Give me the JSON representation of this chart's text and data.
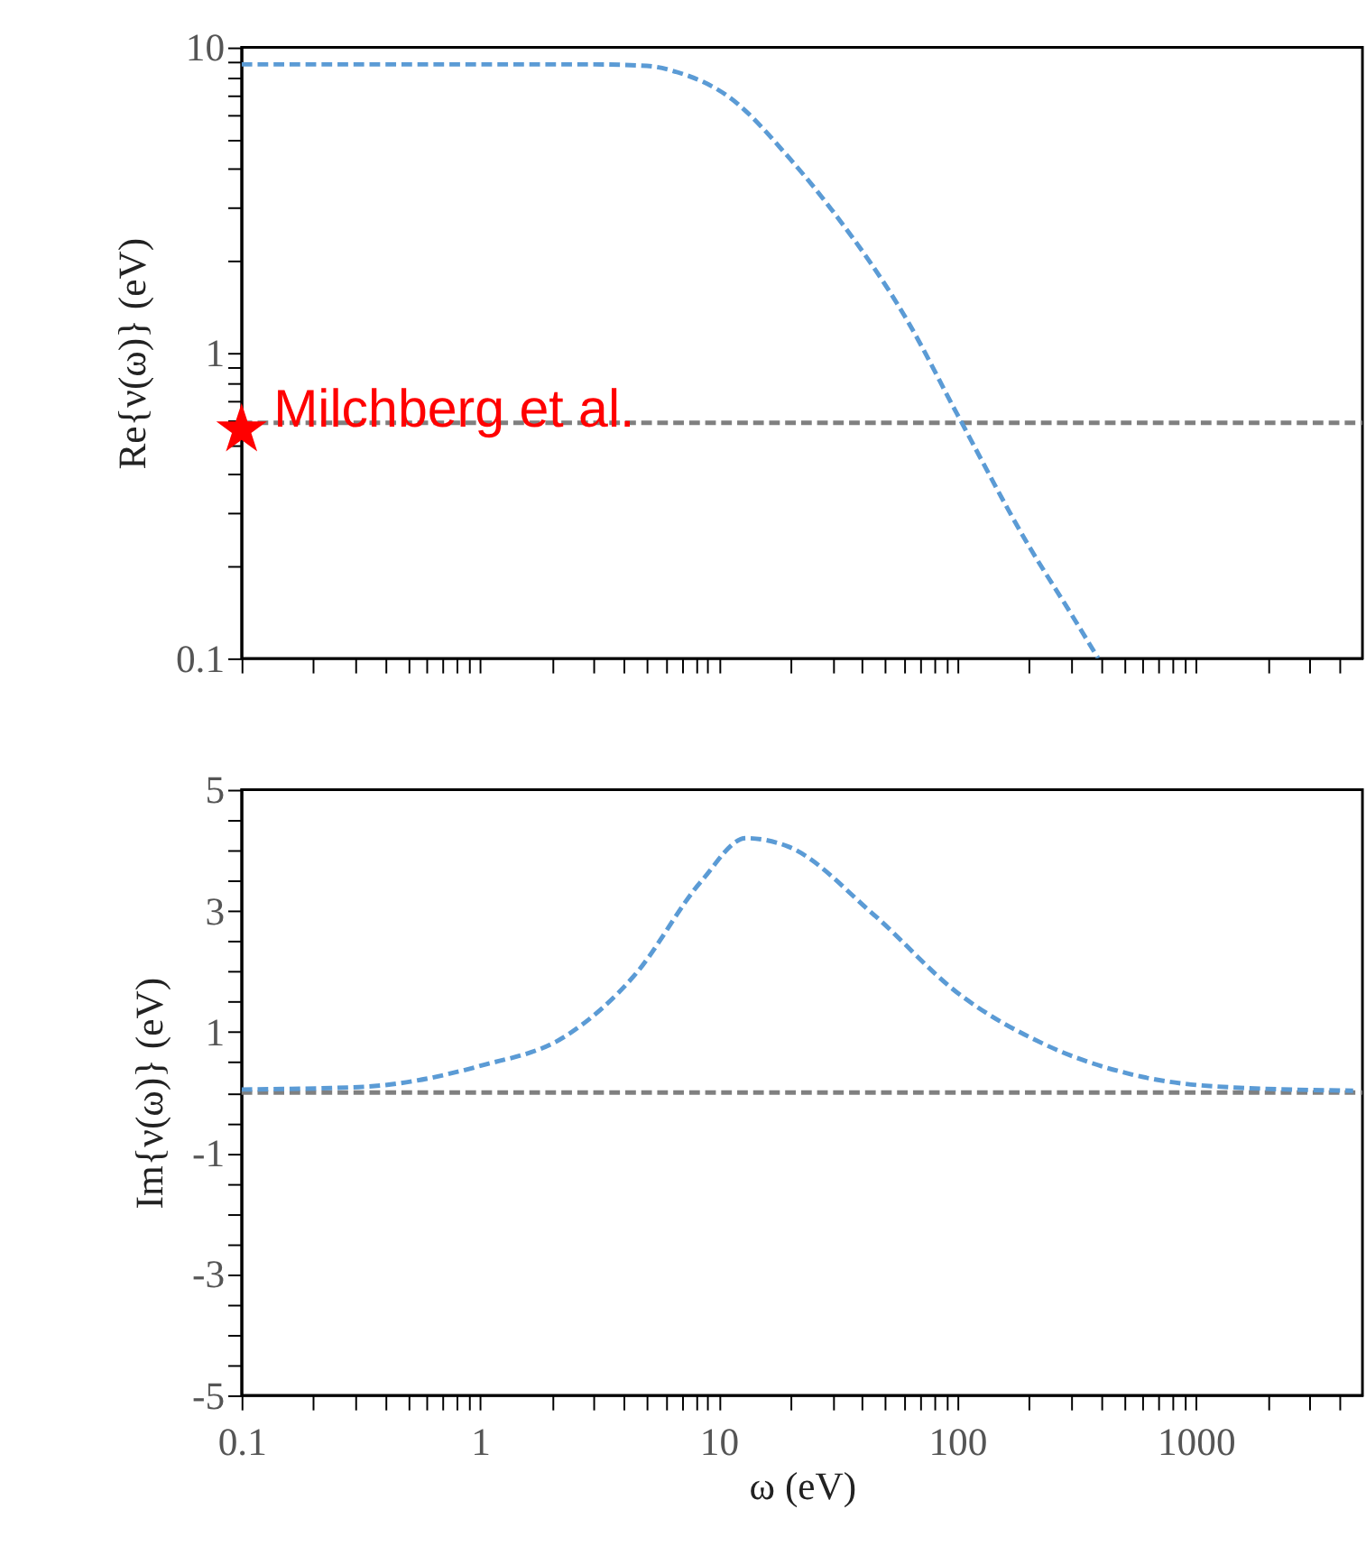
{
  "chart_data": [
    {
      "type": "line",
      "ylabel": "Re{ν(ω)} (eV)",
      "log": "xy",
      "tick_labels": "y",
      "grid": false,
      "line_style": "dashed",
      "xlim": [
        0.1,
        5000
      ],
      "ylim": [
        0.1,
        10
      ],
      "xticks": [
        0.1,
        {
          "value": 0.2,
          "label": null
        },
        {
          "value": 0.3,
          "label": null
        },
        {
          "value": 0.4,
          "label": null
        },
        {
          "value": 0.5,
          "label": null
        },
        {
          "value": 0.6,
          "label": null
        },
        {
          "value": 0.7,
          "label": null
        },
        {
          "value": 0.8,
          "label": null
        },
        {
          "value": 0.9,
          "label": null
        },
        1,
        {
          "value": 2,
          "label": null
        },
        {
          "value": 3,
          "label": null
        },
        {
          "value": 4,
          "label": null
        },
        {
          "value": 5,
          "label": null
        },
        {
          "value": 6,
          "label": null
        },
        {
          "value": 7,
          "label": null
        },
        {
          "value": 8,
          "label": null
        },
        {
          "value": 9,
          "label": null
        },
        10,
        {
          "value": 20,
          "label": null
        },
        {
          "value": 30,
          "label": null
        },
        {
          "value": 40,
          "label": null
        },
        {
          "value": 50,
          "label": null
        },
        {
          "value": 60,
          "label": null
        },
        {
          "value": 70,
          "label": null
        },
        {
          "value": 80,
          "label": null
        },
        {
          "value": 90,
          "label": null
        },
        100,
        {
          "value": 200,
          "label": null
        },
        {
          "value": 300,
          "label": null
        },
        {
          "value": 400,
          "label": null
        },
        {
          "value": 500,
          "label": null
        },
        {
          "value": 600,
          "label": null
        },
        {
          "value": 700,
          "label": null
        },
        {
          "value": 800,
          "label": null
        },
        {
          "value": 900,
          "label": null
        },
        1000,
        {
          "value": 2000,
          "label": null
        },
        {
          "value": 3000,
          "label": null
        },
        {
          "value": 4000,
          "label": null
        }
      ],
      "yticks": [
        0.1,
        {
          "value": 0.2,
          "label": null
        },
        {
          "value": 0.3,
          "label": null
        },
        {
          "value": 0.4,
          "label": null
        },
        {
          "value": 0.5,
          "label": null
        },
        {
          "value": 0.6,
          "label": null
        },
        {
          "value": 0.7,
          "label": null
        },
        {
          "value": 0.8,
          "label": null
        },
        {
          "value": 0.9,
          "label": null
        },
        1,
        {
          "value": 2,
          "label": null
        },
        {
          "value": 3,
          "label": null
        },
        {
          "value": 4,
          "label": null
        },
        {
          "value": 5,
          "label": null
        },
        {
          "value": 6,
          "label": null
        },
        {
          "value": 7,
          "label": null
        },
        {
          "value": 8,
          "label": null
        },
        {
          "value": 9,
          "label": null
        },
        10
      ],
      "series": [
        {
          "color": "#5b9bd5",
          "x": [
            0.1,
            1,
            3,
            5,
            6.7,
            11,
            20,
            29.6,
            62,
            100,
            198,
            300,
            390
          ],
          "values": [
            8.8,
            8.8,
            8.8,
            8.7,
            8.3,
            6.9,
            4.3,
            2.96,
            1.27,
            0.63,
            0.236,
            0.14,
            0.1
          ]
        },
        {
          "type": "scatter",
          "name": "Milchberg et al.",
          "color": "#ff0000",
          "marker": "star",
          "x": [
            0.1
          ],
          "values": [
            0.56
          ]
        }
      ],
      "ref_lines": [
        {
          "axis": "y",
          "value": 0.59,
          "color": "#808080",
          "line_style": "dashed"
        }
      ]
    },
    {
      "type": "line",
      "xlabel": "ω (eV)",
      "ylabel": "Im{ν(ω)} (eV)",
      "log": "x",
      "grid": false,
      "line_style": "dashed",
      "xlim": [
        0.1,
        5000
      ],
      "ylim": [
        -5,
        5
      ],
      "xticks": [
        0.1,
        {
          "value": 0.2,
          "label": null
        },
        {
          "value": 0.3,
          "label": null
        },
        {
          "value": 0.4,
          "label": null
        },
        {
          "value": 0.5,
          "label": null
        },
        {
          "value": 0.6,
          "label": null
        },
        {
          "value": 0.7,
          "label": null
        },
        {
          "value": 0.8,
          "label": null
        },
        {
          "value": 0.9,
          "label": null
        },
        1,
        {
          "value": 2,
          "label": null
        },
        {
          "value": 3,
          "label": null
        },
        {
          "value": 4,
          "label": null
        },
        {
          "value": 5,
          "label": null
        },
        {
          "value": 6,
          "label": null
        },
        {
          "value": 7,
          "label": null
        },
        {
          "value": 8,
          "label": null
        },
        {
          "value": 9,
          "label": null
        },
        10,
        {
          "value": 20,
          "label": null
        },
        {
          "value": 30,
          "label": null
        },
        {
          "value": 40,
          "label": null
        },
        {
          "value": 50,
          "label": null
        },
        {
          "value": 60,
          "label": null
        },
        {
          "value": 70,
          "label": null
        },
        {
          "value": 80,
          "label": null
        },
        {
          "value": 90,
          "label": null
        },
        100,
        {
          "value": 200,
          "label": null
        },
        {
          "value": 300,
          "label": null
        },
        {
          "value": 400,
          "label": null
        },
        {
          "value": 500,
          "label": null
        },
        {
          "value": 600,
          "label": null
        },
        {
          "value": 700,
          "label": null
        },
        {
          "value": 800,
          "label": null
        },
        {
          "value": 900,
          "label": null
        },
        1000,
        {
          "value": 2000,
          "label": null
        },
        {
          "value": 3000,
          "label": null
        },
        {
          "value": 4000,
          "label": null
        }
      ],
      "yticks": [
        -5,
        {
          "value": -4.5,
          "label": null
        },
        {
          "value": -4,
          "label": null
        },
        {
          "value": -3.5,
          "label": null
        },
        -3,
        {
          "value": -2.5,
          "label": null
        },
        {
          "value": -2,
          "label": null
        },
        {
          "value": -1.5,
          "label": null
        },
        -1,
        {
          "value": -0.5,
          "label": null
        },
        {
          "value": 0,
          "label": null
        },
        {
          "value": 0.5,
          "label": null
        },
        1,
        {
          "value": 1.5,
          "label": null
        },
        {
          "value": 2,
          "label": null
        },
        {
          "value": 2.5,
          "label": null
        },
        3,
        {
          "value": 3.5,
          "label": null
        },
        {
          "value": 4,
          "label": null
        },
        {
          "value": 4.5,
          "label": null
        },
        5
      ],
      "series": [
        {
          "color": "#5b9bd5",
          "x": [
            0.1,
            0.31,
            1,
            2.3,
            4.45,
            8.5,
            13,
            19.6,
            44.6,
            100,
            234,
            537,
            1210,
            4570
          ],
          "values": [
            0.05,
            0.09,
            0.44,
            0.94,
            1.94,
            3.5,
            4.2,
            4.06,
            2.94,
            1.65,
            0.79,
            0.3,
            0.1,
            0.03
          ]
        }
      ],
      "ref_lines": [
        {
          "axis": "y",
          "value": 0,
          "color": "#808080",
          "line_style": "dashed"
        }
      ]
    }
  ]
}
